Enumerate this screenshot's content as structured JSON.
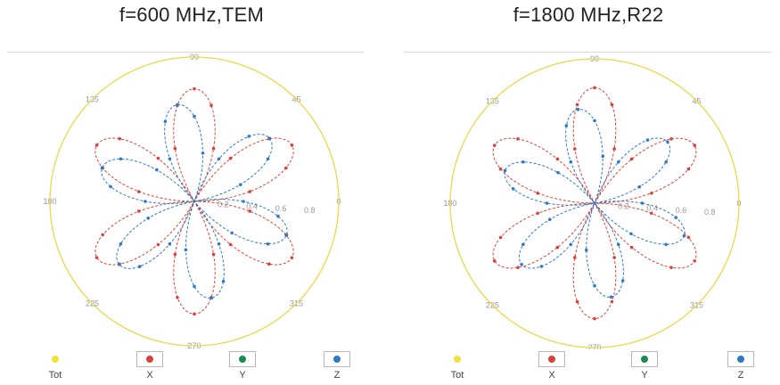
{
  "chart_data": [
    {
      "type": "polar-line",
      "title": "f=600 MHz,TEM",
      "angle_labels": [
        "90",
        "45",
        "0",
        "315",
        "270",
        "225",
        "180",
        "135"
      ],
      "radial_ticks": [
        "0.2",
        "0.4",
        "0.6",
        "0.8"
      ],
      "rlim": [
        0,
        1
      ],
      "theta_unit": "deg",
      "series": [
        {
          "name": "Tot",
          "color": "#e8d84a",
          "pattern": "circle",
          "amplitude": 1.0
        },
        {
          "name": "X",
          "color": "#d9423c",
          "pattern": "rose",
          "petals": 3,
          "amplitude": 0.78,
          "phase": 90
        },
        {
          "name": "Y",
          "color": "#1b8a57",
          "pattern": "rose",
          "petals": 3,
          "amplitude": 0.0,
          "phase": 0
        },
        {
          "name": "Z",
          "color": "#2e7bc4",
          "pattern": "rose",
          "petals": 3,
          "amplitude": 0.68,
          "phase": 40
        }
      ]
    },
    {
      "type": "polar-line",
      "title": "f=1800 MHz,R22",
      "angle_labels": [
        "90",
        "45",
        "0",
        "315",
        "270",
        "225",
        "180",
        "135"
      ],
      "radial_ticks": [
        "0.2",
        "0.4",
        "0.6",
        "0.8"
      ],
      "rlim": [
        0,
        1
      ],
      "theta_unit": "deg",
      "series": [
        {
          "name": "Tot",
          "color": "#e8d84a",
          "pattern": "circle",
          "amplitude": 1.0
        },
        {
          "name": "X",
          "color": "#d9423c",
          "pattern": "rose",
          "petals": 3,
          "amplitude": 0.8,
          "phase": 90
        },
        {
          "name": "Y",
          "color": "#1b8a57",
          "pattern": "rose",
          "petals": 3,
          "amplitude": 0.0,
          "phase": 0
        },
        {
          "name": "Z",
          "color": "#2e7bc4",
          "pattern": "rose",
          "petals": 3,
          "amplitude": 0.66,
          "phase": 40
        }
      ]
    }
  ],
  "legend": [
    {
      "label": "Tot",
      "color": "#f2e23a"
    },
    {
      "label": "X",
      "color": "#d9423c"
    },
    {
      "label": "Y",
      "color": "#1b8a57"
    },
    {
      "label": "Z",
      "color": "#2e7bc4"
    }
  ]
}
